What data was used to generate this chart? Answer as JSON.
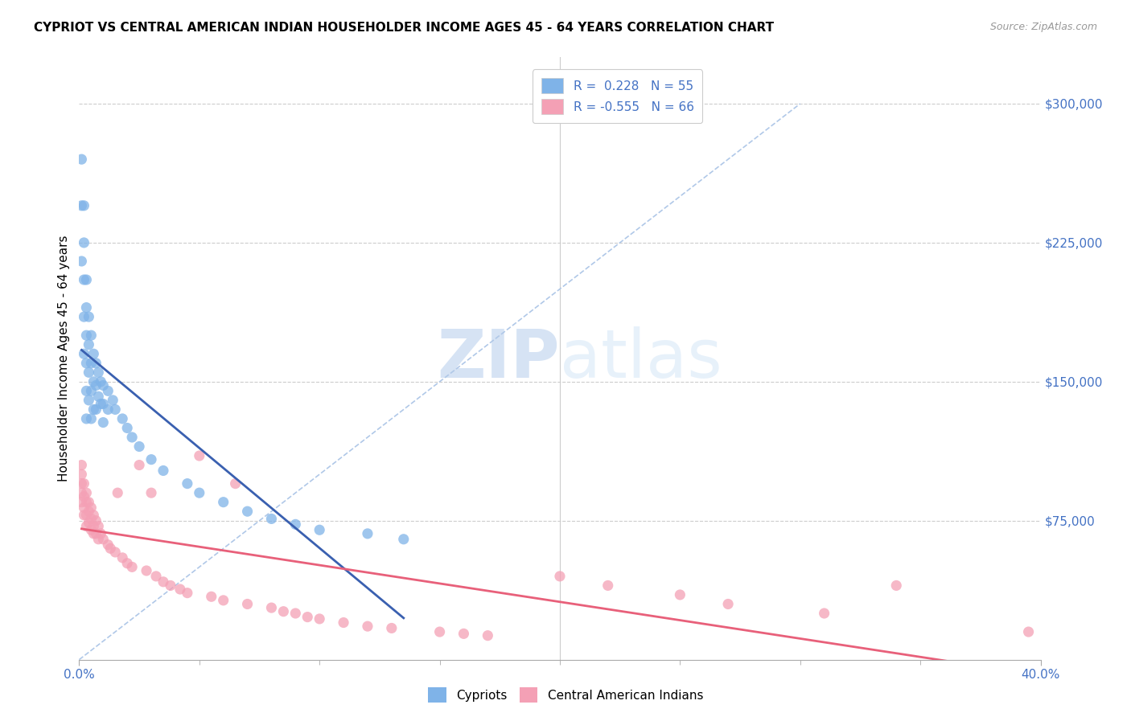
{
  "title": "CYPRIOT VS CENTRAL AMERICAN INDIAN HOUSEHOLDER INCOME AGES 45 - 64 YEARS CORRELATION CHART",
  "source": "Source: ZipAtlas.com",
  "ylabel": "Householder Income Ages 45 - 64 years",
  "xlim": [
    0.0,
    0.4
  ],
  "ylim": [
    0,
    325000
  ],
  "yticks": [
    75000,
    150000,
    225000,
    300000
  ],
  "ytick_labels": [
    "$75,000",
    "$150,000",
    "$225,000",
    "$300,000"
  ],
  "color_cypriot": "#7fb3e8",
  "color_central": "#f4a0b5",
  "line_color_cypriot": "#3a60b0",
  "line_color_central": "#e8607a",
  "diagonal_color": "#b0c8e8",
  "watermark_zip": "ZIP",
  "watermark_atlas": "atlas",
  "cypriot_x": [
    0.001,
    0.001,
    0.001,
    0.002,
    0.002,
    0.002,
    0.002,
    0.002,
    0.003,
    0.003,
    0.003,
    0.003,
    0.003,
    0.003,
    0.004,
    0.004,
    0.004,
    0.004,
    0.005,
    0.005,
    0.005,
    0.005,
    0.006,
    0.006,
    0.006,
    0.007,
    0.007,
    0.007,
    0.008,
    0.008,
    0.009,
    0.009,
    0.01,
    0.01,
    0.01,
    0.012,
    0.012,
    0.014,
    0.015,
    0.018,
    0.02,
    0.022,
    0.025,
    0.03,
    0.035,
    0.045,
    0.05,
    0.06,
    0.07,
    0.08,
    0.09,
    0.1,
    0.12,
    0.135
  ],
  "cypriot_y": [
    270000,
    245000,
    215000,
    245000,
    225000,
    205000,
    185000,
    165000,
    205000,
    190000,
    175000,
    160000,
    145000,
    130000,
    185000,
    170000,
    155000,
    140000,
    175000,
    160000,
    145000,
    130000,
    165000,
    150000,
    135000,
    160000,
    148000,
    135000,
    155000,
    142000,
    150000,
    138000,
    148000,
    138000,
    128000,
    145000,
    135000,
    140000,
    135000,
    130000,
    125000,
    120000,
    115000,
    108000,
    102000,
    95000,
    90000,
    85000,
    80000,
    76000,
    73000,
    70000,
    68000,
    65000
  ],
  "central_x": [
    0.001,
    0.001,
    0.001,
    0.001,
    0.001,
    0.002,
    0.002,
    0.002,
    0.002,
    0.003,
    0.003,
    0.003,
    0.003,
    0.004,
    0.004,
    0.004,
    0.005,
    0.005,
    0.005,
    0.006,
    0.006,
    0.006,
    0.007,
    0.007,
    0.008,
    0.008,
    0.009,
    0.01,
    0.012,
    0.013,
    0.015,
    0.016,
    0.018,
    0.02,
    0.022,
    0.025,
    0.028,
    0.03,
    0.032,
    0.035,
    0.038,
    0.042,
    0.045,
    0.05,
    0.055,
    0.06,
    0.065,
    0.07,
    0.08,
    0.085,
    0.09,
    0.095,
    0.1,
    0.11,
    0.12,
    0.13,
    0.15,
    0.16,
    0.17,
    0.2,
    0.22,
    0.25,
    0.27,
    0.31,
    0.34,
    0.395
  ],
  "central_y": [
    105000,
    100000,
    95000,
    90000,
    85000,
    95000,
    88000,
    82000,
    78000,
    90000,
    85000,
    78000,
    72000,
    85000,
    80000,
    74000,
    82000,
    76000,
    70000,
    78000,
    72000,
    68000,
    75000,
    68000,
    72000,
    65000,
    68000,
    65000,
    62000,
    60000,
    58000,
    90000,
    55000,
    52000,
    50000,
    105000,
    48000,
    90000,
    45000,
    42000,
    40000,
    38000,
    36000,
    110000,
    34000,
    32000,
    95000,
    30000,
    28000,
    26000,
    25000,
    23000,
    22000,
    20000,
    18000,
    17000,
    15000,
    14000,
    13000,
    45000,
    40000,
    35000,
    30000,
    25000,
    40000,
    15000
  ]
}
